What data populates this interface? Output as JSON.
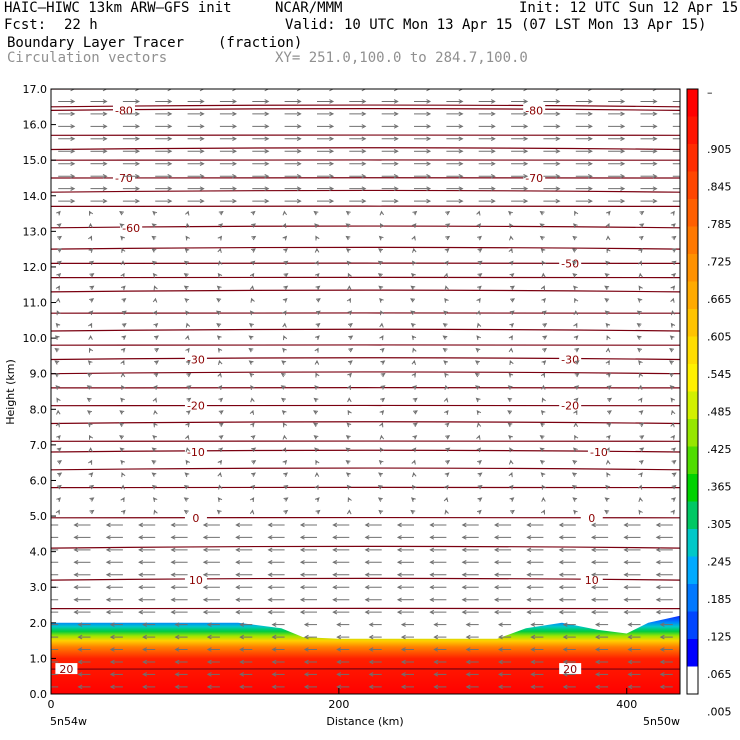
{
  "header": {
    "model": "HAIC–HIWC 13km ARW–GFS init",
    "org": "NCAR/MMM",
    "init": "Init: 12 UTC Sun 12 Apr 15",
    "fcst_label": "Fcst:",
    "fcst_value": "22 h",
    "valid": "Valid: 10 UTC Mon 13 Apr 15 (07 LST Mon 13 Apr 15)",
    "field": "Boundary Layer Tracer",
    "units": "(fraction)",
    "vectors": "Circulation vectors",
    "xy": "XY= 251.0,100.0 to 284.7,100.0"
  },
  "chart_data": {
    "type": "heatmap",
    "title": "Boundary Layer Tracer",
    "xlabel": "Distance (km)",
    "ylabel": "Height (km)",
    "xlim": [
      0,
      437
    ],
    "ylim": [
      0,
      17
    ],
    "x_ticks": [
      "0",
      "200",
      "400"
    ],
    "x_tick_values": [
      0,
      200,
      400
    ],
    "y_ticks": [
      "0.0",
      "1.0",
      "2.0",
      "3.0",
      "4.0",
      "5.0",
      "6.0",
      "7.0",
      "8.0",
      "9.0",
      "10.0",
      "11.0",
      "12.0",
      "13.0",
      "14.0",
      "15.0",
      "16.0",
      "17.0"
    ],
    "y_tick_values": [
      0,
      1,
      2,
      3,
      4,
      5,
      6,
      7,
      8,
      9,
      10,
      11,
      12,
      13,
      14,
      15,
      16,
      17
    ],
    "x_end_labels": {
      "left": "5n54w",
      "right": "5n50w"
    },
    "colorbar": {
      "labels": [
        "–",
        ".905",
        ".845",
        ".785",
        ".725",
        ".665",
        ".605",
        ".545",
        ".485",
        ".425",
        ".365",
        ".305",
        ".245",
        ".185",
        ".125",
        ".065",
        ".005"
      ],
      "colors_top_to_bottom": [
        "#ff0000",
        "#ff1400",
        "#ff2d00",
        "#ff4600",
        "#ff5f00",
        "#ff7800",
        "#ff9100",
        "#ffaa00",
        "#ffc300",
        "#ffdc00",
        "#fff000",
        "#d2f000",
        "#96e600",
        "#50dc00",
        "#00d200",
        "#00c864",
        "#00c8c8",
        "#00aaff",
        "#0078ff",
        "#0046ff",
        "#0000ff",
        "#ffffff"
      ]
    },
    "tracer_top_km": [
      [
        0,
        2.0
      ],
      [
        60,
        2.0
      ],
      [
        130,
        2.0
      ],
      [
        160,
        1.85
      ],
      [
        175,
        1.6
      ],
      [
        200,
        1.55
      ],
      [
        260,
        1.55
      ],
      [
        310,
        1.55
      ],
      [
        330,
        1.85
      ],
      [
        355,
        2.0
      ],
      [
        380,
        1.8
      ],
      [
        400,
        1.7
      ],
      [
        415,
        2.0
      ],
      [
        437,
        2.2
      ]
    ],
    "temperature_contours": [
      {
        "label": "-80",
        "height": 16.4,
        "label_x": [
          50,
          335
        ]
      },
      {
        "label": "-70",
        "height": 14.5,
        "label_x": [
          50,
          335
        ]
      },
      {
        "label": "-60",
        "height": 13.1,
        "label_x": [
          55
        ]
      },
      {
        "label": "-50",
        "height": 12.1,
        "label_x": [
          360
        ]
      },
      {
        "label": "-30",
        "height": 9.4,
        "label_x": [
          100,
          360
        ]
      },
      {
        "label": "-20",
        "height": 8.1,
        "label_x": [
          100,
          360
        ]
      },
      {
        "label": "-10",
        "height": 6.8,
        "label_x": [
          100,
          380
        ]
      },
      {
        "label": "0",
        "height": 4.95,
        "label_x": [
          100,
          375
        ]
      },
      {
        "label": "10",
        "height": 3.2,
        "label_x": [
          100,
          375
        ]
      },
      {
        "label": "20",
        "height": 0.7,
        "label_x": [
          10,
          360
        ]
      }
    ],
    "extra_contour_heights": [
      17.0,
      16.5,
      15.7,
      15.3,
      15.0,
      14.1,
      13.7,
      12.5,
      11.7,
      11.3,
      10.7,
      10.2,
      9.8,
      9.0,
      8.6,
      7.6,
      7.1,
      6.3,
      5.8,
      4.1,
      2.4
    ],
    "wind": {
      "upper_levels": [
        13.5,
        17.0,
        "east"
      ],
      "middle_levels": [
        5.3,
        13.0,
        "calm"
      ],
      "lower_levels": [
        0.1,
        5.0,
        "west"
      ]
    }
  }
}
